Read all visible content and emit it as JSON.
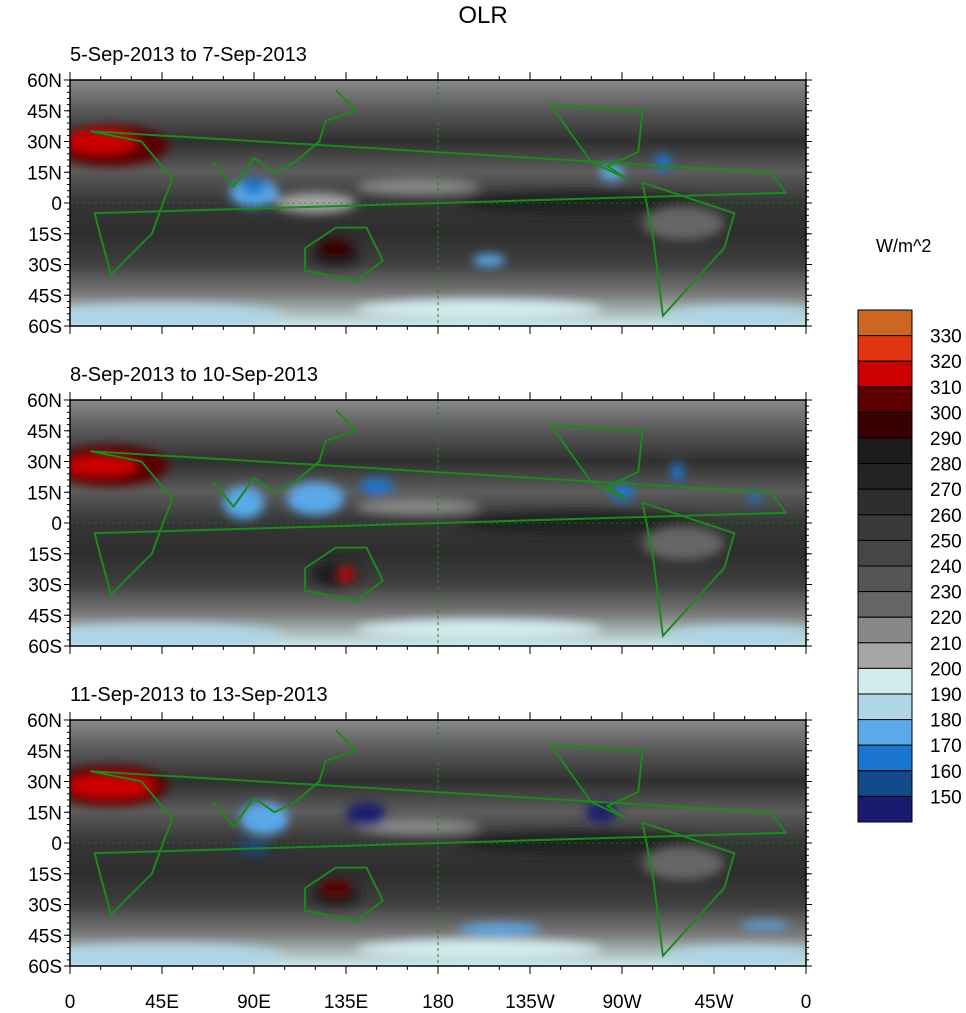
{
  "title": "OLR",
  "panels": [
    {
      "subtitle": "5-Sep-2013 to 7-Sep-2013"
    },
    {
      "subtitle": "8-Sep-2013 to 10-Sep-2013"
    },
    {
      "subtitle": "11-Sep-2013 to 13-Sep-2013"
    }
  ],
  "lat_ticks": [
    "60N",
    "45N",
    "30N",
    "15N",
    "0",
    "15S",
    "30S",
    "45S",
    "60S"
  ],
  "lon_ticks": [
    "0",
    "45E",
    "90E",
    "135E",
    "180",
    "135W",
    "90W",
    "45W",
    "0"
  ],
  "colorbar": {
    "units": "W/m^2",
    "labels": [
      "330",
      "320",
      "310",
      "300",
      "290",
      "280",
      "270",
      "260",
      "250",
      "240",
      "230",
      "220",
      "210",
      "200",
      "190",
      "180",
      "170",
      "160",
      "150"
    ],
    "colors": [
      "#cc6622",
      "#e03510",
      "#cc0000",
      "#5c0000",
      "#380000",
      "#1c1c1c",
      "#242424",
      "#2e2e2e",
      "#3a3a3a",
      "#464646",
      "#555555",
      "#666666",
      "#888888",
      "#a6a6a6",
      "#d2ecee",
      "#aed6e6",
      "#5aa9ea",
      "#1a75cf",
      "#124a8a",
      "#1a1a70"
    ]
  },
  "coastline_color": "#1a8a1a"
}
